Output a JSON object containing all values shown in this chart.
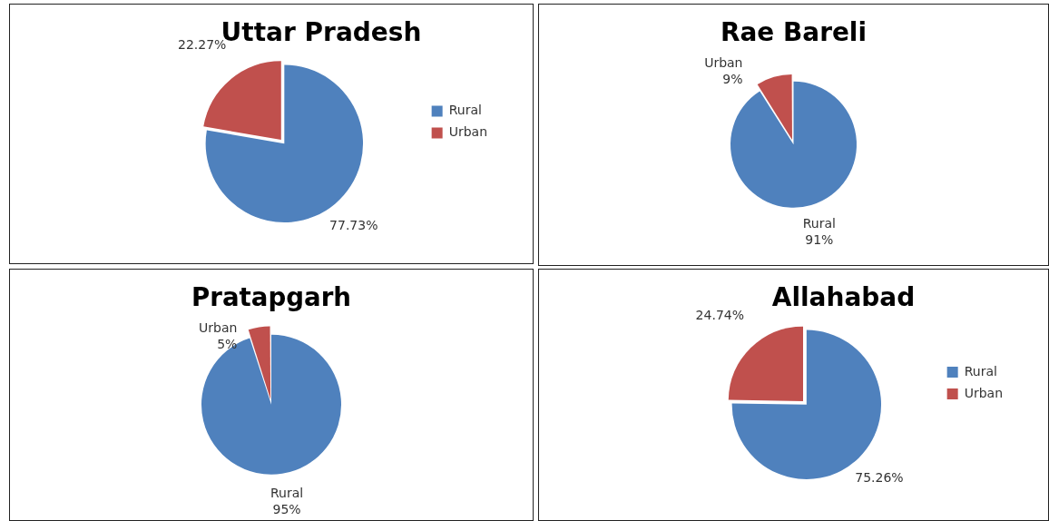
{
  "chart_data": [
    {
      "type": "pie",
      "title": "Uttar Pradesh",
      "categories": [
        "Rural",
        "Urban"
      ],
      "values": [
        77.73,
        22.27
      ],
      "colors": [
        "#4f81bd",
        "#c0504d"
      ],
      "value_labels": [
        "77.73%",
        "22.27%"
      ],
      "legend": "right"
    },
    {
      "type": "pie",
      "title": "Rae Bareli",
      "categories": [
        "Rural",
        "Urban"
      ],
      "values": [
        91,
        9
      ],
      "colors": [
        "#4f81bd",
        "#c0504d"
      ],
      "value_labels": [
        "91%",
        "9%"
      ],
      "legend": false
    },
    {
      "type": "pie",
      "title": "Pratapgarh",
      "categories": [
        "Rural",
        "Urban"
      ],
      "values": [
        95,
        5
      ],
      "colors": [
        "#4f81bd",
        "#c0504d"
      ],
      "value_labels": [
        "95%",
        "5%"
      ],
      "legend": false
    },
    {
      "type": "pie",
      "title": "Allahabad",
      "categories": [
        "Rural",
        "Urban"
      ],
      "values": [
        75.26,
        24.74
      ],
      "colors": [
        "#4f81bd",
        "#c0504d"
      ],
      "value_labels": [
        "75.26%",
        "24.74%"
      ],
      "legend": "right"
    }
  ]
}
